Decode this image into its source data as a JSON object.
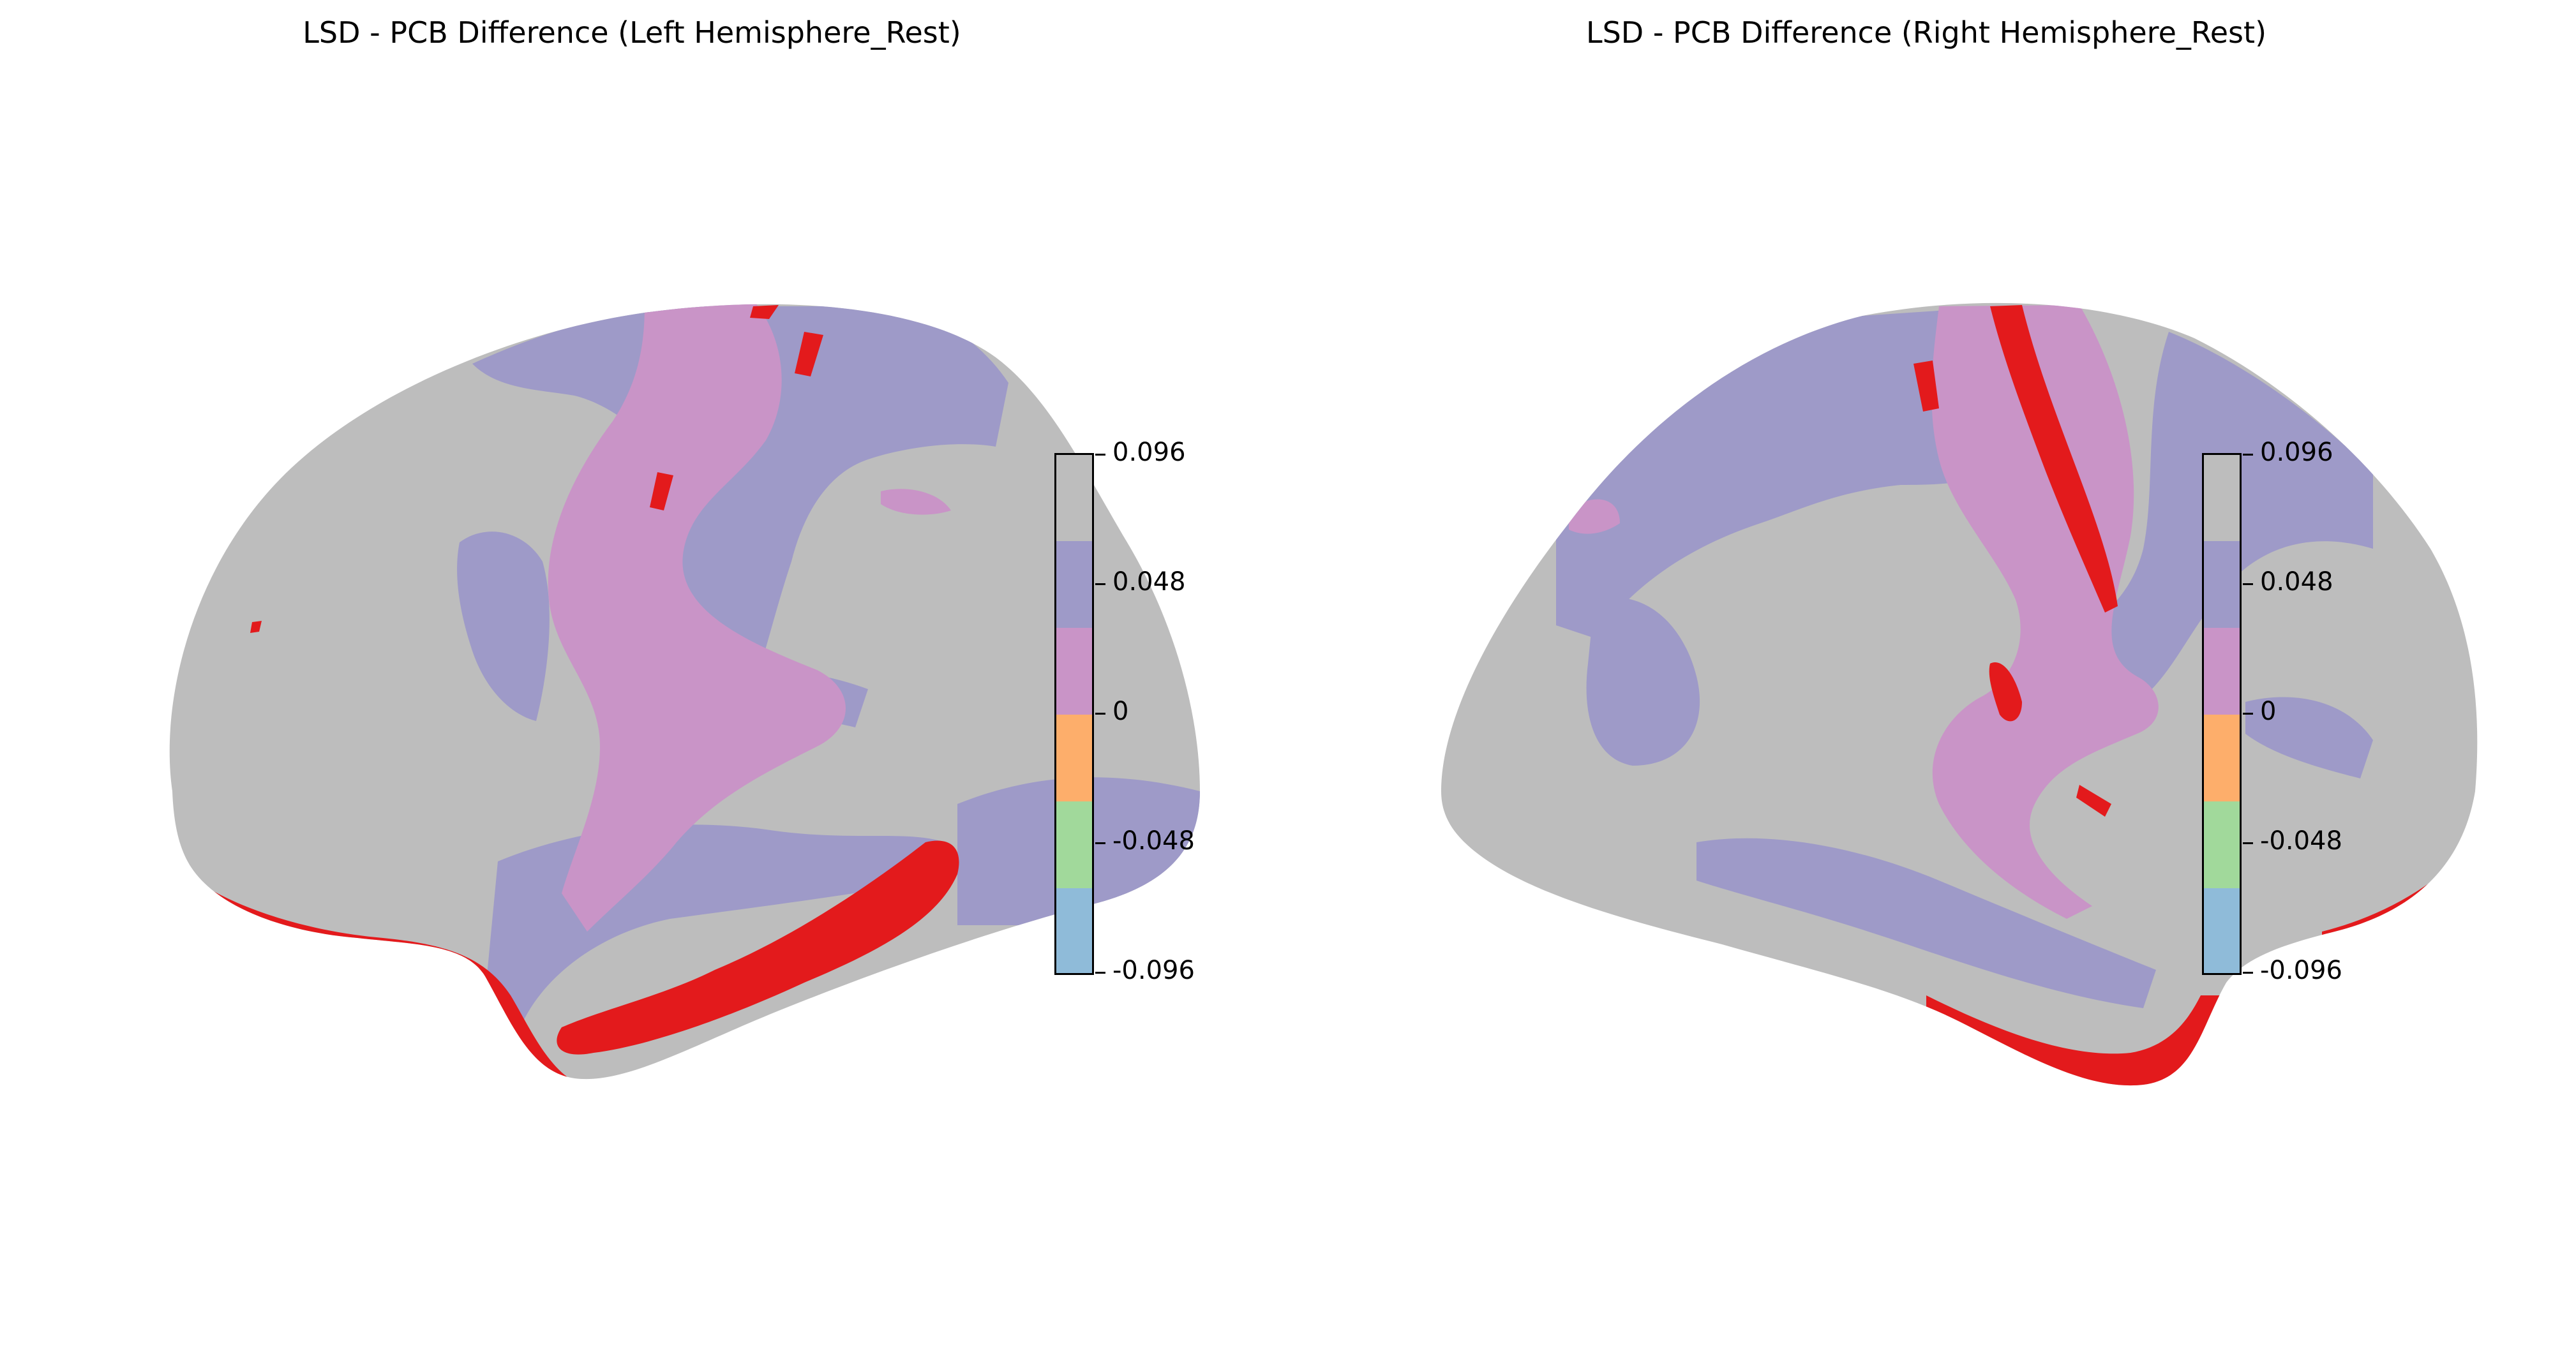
{
  "chart_data": [
    {
      "type": "heatmap",
      "title": "LSD - PCB Difference (Left Hemisphere_Rest)",
      "hemisphere": "left",
      "view": "lateral surface",
      "colorbar": {
        "vmin": -0.096,
        "vmax": 0.096,
        "ticks": [
          "0.096",
          "0.048",
          "0",
          "-0.048",
          "-0.096"
        ],
        "bins": [
          {
            "range": [
              0.072,
              0.096
            ],
            "color": "#bdbdbd"
          },
          {
            "range": [
              0.048,
              0.072
            ],
            "color": "#9e9ac8"
          },
          {
            "range": [
              0.024,
              0.048
            ],
            "color": "#c994c7"
          },
          {
            "range": [
              0.0,
              0.024
            ],
            "color": "#fdae6b"
          },
          {
            "range": [
              -0.048,
              0.0
            ],
            "color": "#a1d99b"
          },
          {
            "range": [
              -0.096,
              -0.048
            ],
            "color": "#8fbbd9"
          }
        ]
      },
      "highlight_color": "#e31a1c"
    },
    {
      "type": "heatmap",
      "title": "LSD - PCB Difference (Right Hemisphere_Rest)",
      "hemisphere": "right",
      "view": "lateral surface",
      "colorbar": {
        "vmin": -0.096,
        "vmax": 0.096,
        "ticks": [
          "0.096",
          "0.048",
          "0",
          "-0.048",
          "-0.096"
        ],
        "bins": [
          {
            "range": [
              0.072,
              0.096
            ],
            "color": "#bdbdbd"
          },
          {
            "range": [
              0.048,
              0.072
            ],
            "color": "#9e9ac8"
          },
          {
            "range": [
              0.024,
              0.048
            ],
            "color": "#c994c7"
          },
          {
            "range": [
              0.0,
              0.024
            ],
            "color": "#fdae6b"
          },
          {
            "range": [
              -0.048,
              0.0
            ],
            "color": "#a1d99b"
          },
          {
            "range": [
              -0.096,
              -0.048
            ],
            "color": "#8fbbd9"
          }
        ]
      },
      "highlight_color": "#e31a1c"
    }
  ]
}
